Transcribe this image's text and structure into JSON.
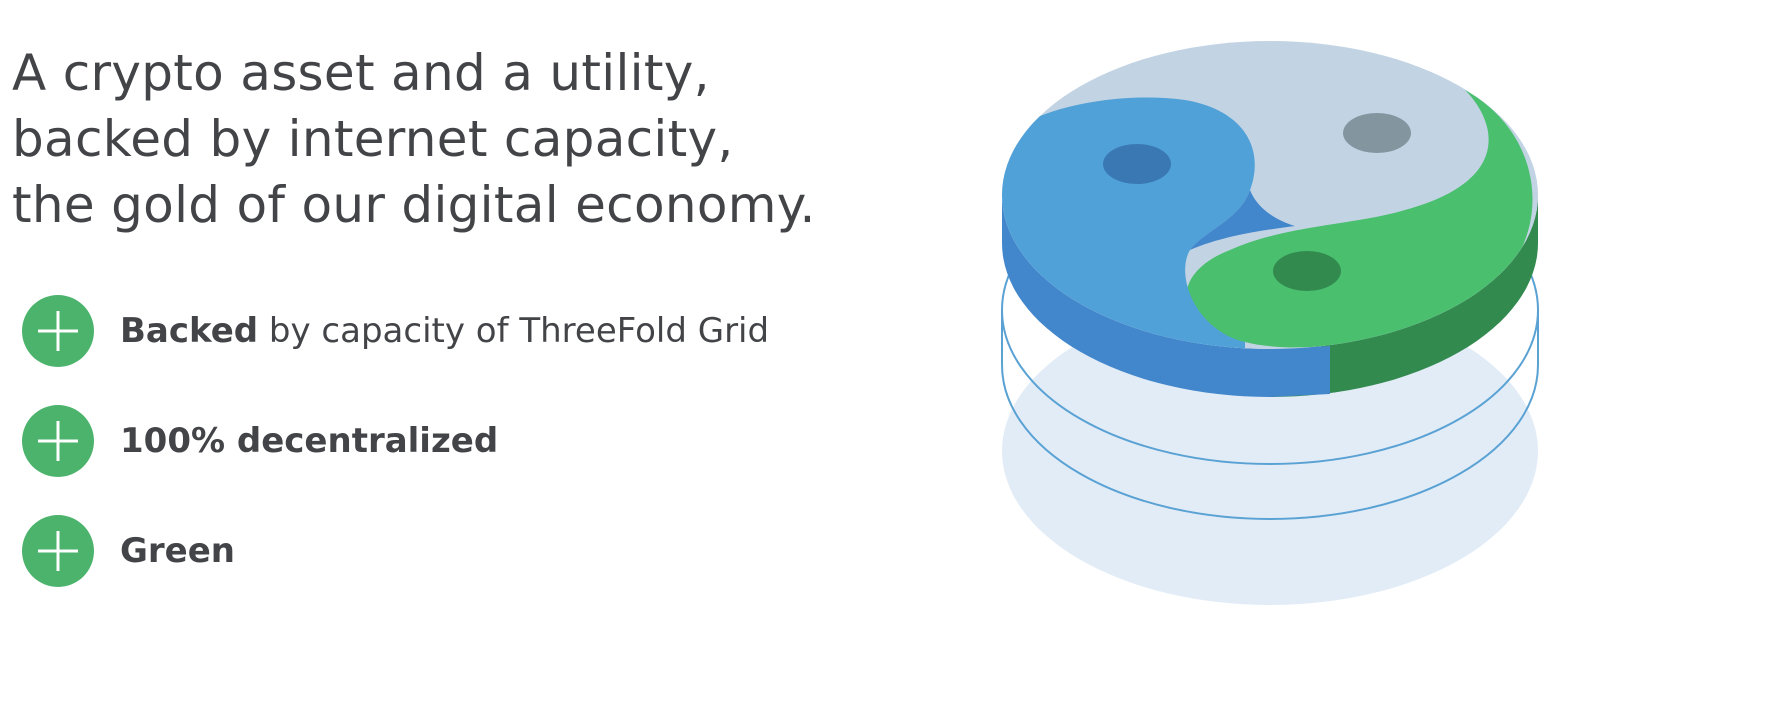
{
  "headline": {
    "line1": "A crypto asset and a utility,",
    "line2": "backed by internet capacity,",
    "line3": "the gold of our digital economy."
  },
  "features": [
    {
      "icon": "plus-icon",
      "bold": "Backed",
      "rest": " by capacity of ThreeFold Grid"
    },
    {
      "icon": "plus-icon",
      "bold": "100% decentralized",
      "rest": ""
    },
    {
      "icon": "plus-icon",
      "bold": "Green",
      "rest": ""
    }
  ],
  "colors": {
    "text": "#434448",
    "icon_green": "#4BB36C",
    "disc_blue": "#50A1D8",
    "disc_blue_dark": "#4286CC",
    "disc_green": "#4ABF6E",
    "disc_green_dark": "#338A4F",
    "disc_grey": "#C2D3E3",
    "shadow": "#E2ECF7",
    "outline": "#5AA2D4"
  },
  "illustration": {
    "icon": "yin-yang-coin-illustration"
  }
}
